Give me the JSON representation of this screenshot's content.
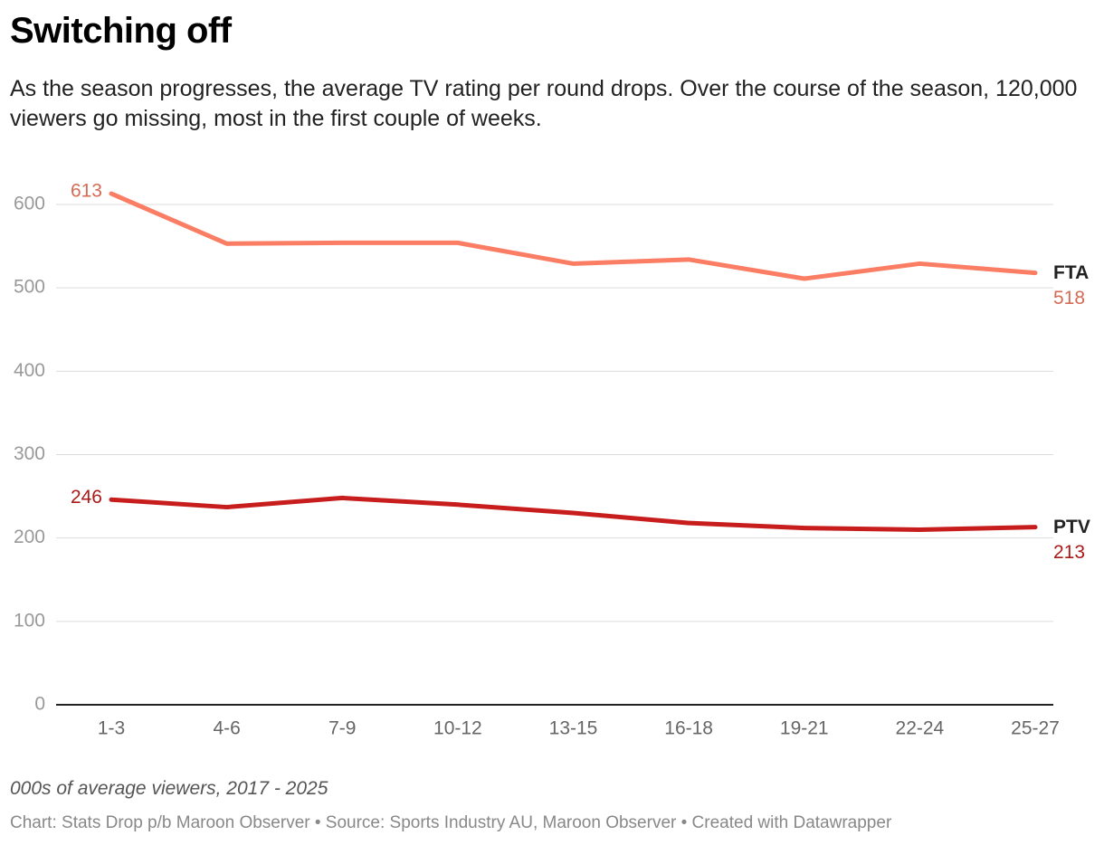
{
  "chart_data": {
    "type": "line",
    "title": "Switching off",
    "subtitle": "As the season progresses, the average TV rating per round drops. Over the course of the season, 120,000 viewers go missing, most in the first couple of weeks.",
    "note": "000s of average viewers, 2017 - 2025",
    "footer": "Chart: Stats Drop p/b Maroon Observer • Source: Sports Industry AU, Maroon Observer • Created with Datawrapper",
    "categories": [
      "1-3",
      "4-6",
      "7-9",
      "10-12",
      "13-15",
      "16-18",
      "19-21",
      "22-24",
      "25-27"
    ],
    "series": [
      {
        "name": "FTA",
        "color": "#fa7d64",
        "values": [
          613,
          553,
          554,
          554,
          529,
          534,
          511,
          529,
          518
        ]
      },
      {
        "name": "PTV",
        "color": "#c71e1d",
        "values": [
          246,
          237,
          248,
          240,
          230,
          218,
          212,
          210,
          213
        ]
      }
    ],
    "ylim": [
      0,
      600
    ],
    "yticks": [
      0,
      100,
      200,
      300,
      400,
      500,
      600
    ],
    "grid": true
  }
}
